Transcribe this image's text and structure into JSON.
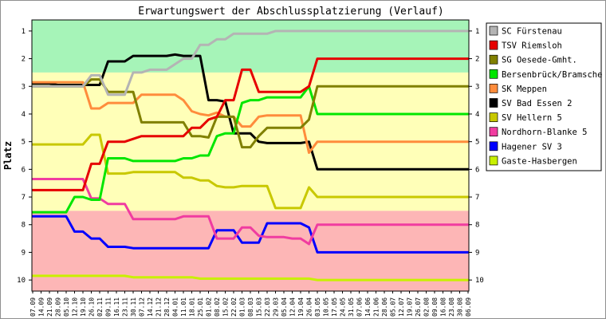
{
  "chart_data": {
    "type": "line",
    "title": "Erwartungswert der Abschlussplatzierung (Verlauf)",
    "ylabel": "Platz",
    "xlabel": "",
    "ylim": [
      0.6,
      10.4
    ],
    "y_inverted": true,
    "y_ticks": [
      1,
      2,
      3,
      4,
      5,
      6,
      7,
      8,
      9,
      10
    ],
    "x_ticks": [
      "07.09",
      "14.09",
      "21.09",
      "28.09",
      "05.10",
      "12.10",
      "19.10",
      "26.10",
      "02.11",
      "09.11",
      "16.11",
      "23.11",
      "30.11",
      "07.12",
      "14.12",
      "21.12",
      "28.12",
      "04.01",
      "11.01",
      "18.01",
      "25.01",
      "01.02",
      "08.02",
      "15.02",
      "22.02",
      "01.03",
      "08.03",
      "15.03",
      "22.03",
      "29.03",
      "05.04",
      "12.04",
      "19.04",
      "26.04",
      "03.05",
      "10.05",
      "17.05",
      "24.05",
      "31.05",
      "07.06",
      "14.06",
      "21.06",
      "28.06",
      "05.07",
      "12.07",
      "19.07",
      "26.07",
      "02.08",
      "09.08",
      "16.08",
      "23.08",
      "30.08",
      "06.09"
    ],
    "grid": false,
    "legend_position": "right",
    "background_zones": [
      {
        "name": "promotion",
        "from": 0.6,
        "to": 2.5,
        "color": "#a6f4b8"
      },
      {
        "name": "middle",
        "from": 2.5,
        "to": 7.5,
        "color": "#ffffb8"
      },
      {
        "name": "relegation",
        "from": 7.5,
        "to": 10.4,
        "color": "#fdb6b6"
      }
    ],
    "series": [
      {
        "name": "SC Fürstenau",
        "color": "#b4b4b4",
        "values": [
          3.0,
          3.0,
          3.0,
          3.0,
          3.0,
          3.0,
          3.0,
          2.6,
          2.6,
          3.3,
          3.3,
          3.3,
          2.5,
          2.5,
          2.4,
          2.4,
          2.4,
          2.2,
          2.0,
          2.0,
          1.5,
          1.5,
          1.3,
          1.3,
          1.1,
          1.1,
          1.1,
          1.1,
          1.1,
          1.0,
          1.0,
          1.0,
          1.0,
          1.0,
          1.0,
          1.0,
          1.0,
          1.0,
          1.0,
          1.0,
          1.0,
          1.0,
          1.0,
          1.0,
          1.0,
          1.0,
          1.0,
          1.0,
          1.0,
          1.0,
          1.0,
          1.0,
          1.0
        ]
      },
      {
        "name": "TSV Riemsloh",
        "color": "#e60000",
        "values": [
          6.75,
          6.75,
          6.75,
          6.75,
          6.75,
          6.75,
          6.75,
          5.8,
          5.8,
          5.0,
          5.0,
          5.0,
          4.9,
          4.8,
          4.8,
          4.8,
          4.8,
          4.8,
          4.8,
          4.5,
          4.5,
          4.2,
          4.1,
          3.5,
          3.5,
          2.4,
          2.4,
          3.2,
          3.2,
          3.2,
          3.2,
          3.2,
          3.2,
          3.0,
          2.0,
          2.0,
          2.0,
          2.0,
          2.0,
          2.0,
          2.0,
          2.0,
          2.0,
          2.0,
          2.0,
          2.0,
          2.0,
          2.0,
          2.0,
          2.0,
          2.0,
          2.0,
          2.0
        ]
      },
      {
        "name": "SG Oesede-Gmht.",
        "color": "#808000",
        "values": [
          3.0,
          3.0,
          3.0,
          3.0,
          3.0,
          3.0,
          3.0,
          2.75,
          2.75,
          3.2,
          3.2,
          3.2,
          3.2,
          4.3,
          4.3,
          4.3,
          4.3,
          4.3,
          4.3,
          4.8,
          4.8,
          4.85,
          4.1,
          4.1,
          4.1,
          5.2,
          5.2,
          4.8,
          4.5,
          4.5,
          4.5,
          4.5,
          4.5,
          4.2,
          3.0,
          3.0,
          3.0,
          3.0,
          3.0,
          3.0,
          3.0,
          3.0,
          3.0,
          3.0,
          3.0,
          3.0,
          3.0,
          3.0,
          3.0,
          3.0,
          3.0,
          3.0,
          3.0
        ]
      },
      {
        "name": "Bersenbrück/Bramsche",
        "color": "#00e600",
        "values": [
          7.55,
          7.55,
          7.55,
          7.55,
          7.55,
          7.0,
          7.0,
          7.1,
          7.1,
          5.6,
          5.6,
          5.6,
          5.7,
          5.7,
          5.7,
          5.7,
          5.7,
          5.7,
          5.6,
          5.6,
          5.5,
          5.5,
          4.8,
          4.7,
          4.7,
          3.6,
          3.5,
          3.5,
          3.4,
          3.4,
          3.4,
          3.4,
          3.4,
          3.0,
          4.0,
          4.0,
          4.0,
          4.0,
          4.0,
          4.0,
          4.0,
          4.0,
          4.0,
          4.0,
          4.0,
          4.0,
          4.0,
          4.0,
          4.0,
          4.0,
          4.0,
          4.0,
          4.0
        ]
      },
      {
        "name": "SK Meppen",
        "color": "#ff8c3c",
        "values": [
          2.85,
          2.85,
          2.85,
          2.85,
          2.85,
          2.85,
          2.85,
          3.8,
          3.8,
          3.6,
          3.6,
          3.6,
          3.6,
          3.3,
          3.3,
          3.3,
          3.3,
          3.3,
          3.5,
          3.9,
          4.0,
          4.05,
          3.95,
          4.1,
          4.1,
          4.45,
          4.45,
          4.1,
          4.05,
          4.05,
          4.05,
          4.05,
          4.05,
          5.4,
          5.0,
          5.0,
          5.0,
          5.0,
          5.0,
          5.0,
          5.0,
          5.0,
          5.0,
          5.0,
          5.0,
          5.0,
          5.0,
          5.0,
          5.0,
          5.0,
          5.0,
          5.0,
          5.0
        ]
      },
      {
        "name": "SV Bad Essen 2",
        "color": "#000000",
        "values": [
          2.9,
          2.9,
          2.9,
          2.95,
          2.95,
          2.95,
          2.95,
          2.95,
          2.95,
          2.1,
          2.1,
          2.1,
          1.9,
          1.9,
          1.9,
          1.9,
          1.9,
          1.85,
          1.9,
          1.9,
          1.9,
          3.5,
          3.5,
          3.55,
          4.7,
          4.7,
          4.7,
          5.0,
          5.05,
          5.05,
          5.05,
          5.05,
          5.05,
          5.0,
          6.0,
          6.0,
          6.0,
          6.0,
          6.0,
          6.0,
          6.0,
          6.0,
          6.0,
          6.0,
          6.0,
          6.0,
          6.0,
          6.0,
          6.0,
          6.0,
          6.0,
          6.0,
          6.0
        ]
      },
      {
        "name": "SV Hellern 5",
        "color": "#c8c800",
        "values": [
          5.1,
          5.1,
          5.1,
          5.1,
          5.1,
          5.1,
          5.1,
          4.75,
          4.75,
          6.15,
          6.15,
          6.15,
          6.1,
          6.1,
          6.1,
          6.1,
          6.1,
          6.1,
          6.3,
          6.3,
          6.4,
          6.4,
          6.6,
          6.65,
          6.65,
          6.6,
          6.6,
          6.6,
          6.6,
          7.4,
          7.4,
          7.4,
          7.4,
          6.65,
          7.0,
          7.0,
          7.0,
          7.0,
          7.0,
          7.0,
          7.0,
          7.0,
          7.0,
          7.0,
          7.0,
          7.0,
          7.0,
          7.0,
          7.0,
          7.0,
          7.0,
          7.0,
          7.0
        ]
      },
      {
        "name": "Nordhorn-Blanke 5",
        "color": "#f03ca0",
        "values": [
          6.35,
          6.35,
          6.35,
          6.35,
          6.35,
          6.35,
          6.35,
          7.05,
          7.05,
          7.25,
          7.25,
          7.25,
          7.8,
          7.8,
          7.8,
          7.8,
          7.8,
          7.8,
          7.7,
          7.7,
          7.7,
          7.7,
          8.5,
          8.5,
          8.5,
          8.1,
          8.1,
          8.4,
          8.45,
          8.45,
          8.45,
          8.5,
          8.5,
          8.7,
          8.0,
          8.0,
          8.0,
          8.0,
          8.0,
          8.0,
          8.0,
          8.0,
          8.0,
          8.0,
          8.0,
          8.0,
          8.0,
          8.0,
          8.0,
          8.0,
          8.0,
          8.0,
          8.0
        ]
      },
      {
        "name": "Hagener SV 3",
        "color": "#0000ff",
        "values": [
          7.7,
          7.7,
          7.7,
          7.7,
          7.7,
          8.25,
          8.25,
          8.5,
          8.5,
          8.8,
          8.8,
          8.8,
          8.85,
          8.85,
          8.85,
          8.85,
          8.85,
          8.85,
          8.85,
          8.85,
          8.85,
          8.85,
          8.2,
          8.2,
          8.2,
          8.65,
          8.65,
          8.65,
          7.95,
          7.95,
          7.95,
          7.95,
          7.95,
          8.1,
          9.0,
          9.0,
          9.0,
          9.0,
          9.0,
          9.0,
          9.0,
          9.0,
          9.0,
          9.0,
          9.0,
          9.0,
          9.0,
          9.0,
          9.0,
          9.0,
          9.0,
          9.0,
          9.0
        ]
      },
      {
        "name": "Gaste-Hasbergen",
        "color": "#c8f000",
        "values": [
          9.85,
          9.85,
          9.85,
          9.85,
          9.85,
          9.85,
          9.85,
          9.85,
          9.85,
          9.85,
          9.85,
          9.85,
          9.9,
          9.9,
          9.9,
          9.9,
          9.9,
          9.9,
          9.9,
          9.9,
          9.95,
          9.95,
          9.95,
          9.95,
          9.95,
          9.95,
          9.95,
          9.95,
          9.95,
          9.95,
          9.95,
          9.95,
          9.95,
          9.95,
          10.0,
          10.0,
          10.0,
          10.0,
          10.0,
          10.0,
          10.0,
          10.0,
          10.0,
          10.0,
          10.0,
          10.0,
          10.0,
          10.0,
          10.0,
          10.0,
          10.0,
          10.0,
          10.0
        ]
      }
    ]
  }
}
